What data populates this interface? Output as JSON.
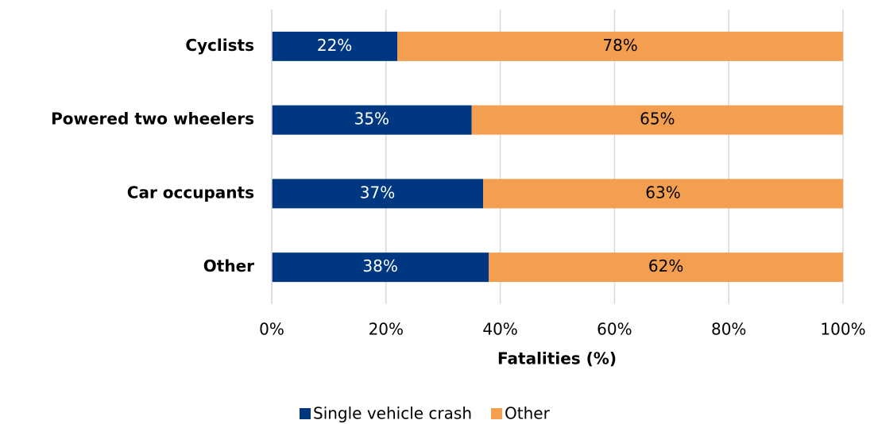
{
  "chart_data": {
    "type": "bar",
    "orientation": "horizontal",
    "stacked": true,
    "categories": [
      "Cyclists",
      "Powered two wheelers",
      "Car occupants",
      "Other"
    ],
    "series": [
      {
        "name": "Single vehicle crash",
        "color": "#003781",
        "label_color": "#ffffff",
        "values": [
          22,
          35,
          37,
          38
        ],
        "value_labels": [
          "22%",
          "35%",
          "37%",
          "38%"
        ]
      },
      {
        "name": "Other",
        "color": "#f39f4f",
        "label_color": "#000000",
        "values": [
          78,
          65,
          63,
          62
        ],
        "value_labels": [
          "78%",
          "65%",
          "63%",
          "62%"
        ]
      }
    ],
    "xlabel": "Fatalities (%)",
    "xlim": [
      0,
      100
    ],
    "xticks": [
      {
        "value": 0,
        "label": "0%"
      },
      {
        "value": 20,
        "label": "20%"
      },
      {
        "value": 40,
        "label": "40%"
      },
      {
        "value": 60,
        "label": "60%"
      },
      {
        "value": 80,
        "label": "80%"
      },
      {
        "value": 100,
        "label": "100%"
      }
    ],
    "grid": true,
    "legend": "bottom"
  }
}
